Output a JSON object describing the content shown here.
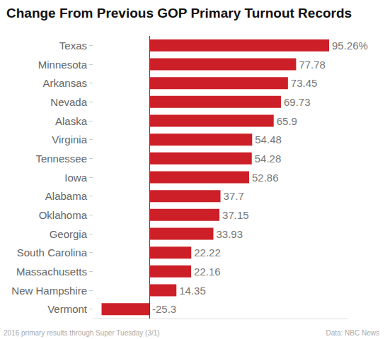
{
  "chart_data": {
    "type": "bar",
    "orientation": "horizontal",
    "title": "Change From Previous GOP Primary Turnout Records",
    "categories": [
      "Texas",
      "Minnesota",
      "Arkansas",
      "Nevada",
      "Alaska",
      "Virginia",
      "Tennessee",
      "Iowa",
      "Alabama",
      "Oklahoma",
      "Georgia",
      "South Carolina",
      "Massachusetts",
      "New Hampshire",
      "Vermont"
    ],
    "values": [
      95.26,
      77.78,
      73.45,
      69.73,
      65.9,
      54.48,
      54.28,
      52.86,
      37.7,
      37.15,
      33.93,
      22.22,
      22.16,
      14.35,
      -25.3
    ],
    "value_labels": [
      "95.26%",
      "77.78",
      "73.45",
      "69.73",
      "65.9",
      "54.48",
      "54.28",
      "52.86",
      "37.7",
      "37.15",
      "33.93",
      "22.22",
      "22.16",
      "14.35",
      "-25.3"
    ],
    "color": "#cc1f27",
    "xlim": [
      -30,
      105
    ],
    "xticks": [
      0
    ],
    "grid": false,
    "data_labels": true,
    "tick_labels": "y",
    "annotations": [
      "2016 primary results through Super Tuesday (3/1)",
      "Data: NBC News"
    ]
  }
}
